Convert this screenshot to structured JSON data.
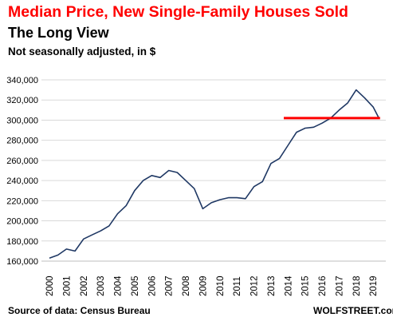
{
  "chart_data": {
    "type": "line",
    "title": "Median Price, New Single-Family Houses Sold",
    "subtitle": "The Long View",
    "note": "Not seasonally adjusted, in $",
    "source": "Source of data: Census Bureau",
    "credit": "WOLFSTREET.com",
    "ylim": [
      160000,
      340000
    ],
    "yticks": [
      "160,000",
      "180,000",
      "200,000",
      "220,000",
      "240,000",
      "260,000",
      "280,000",
      "300,000",
      "320,000",
      "340,000"
    ],
    "xticks": [
      "2000",
      "2001",
      "2002",
      "2003",
      "2004",
      "2005",
      "2006",
      "2007",
      "2008",
      "2009",
      "2010",
      "2011",
      "2012",
      "2013",
      "2014",
      "2015",
      "2016",
      "2017",
      "2018",
      "2019"
    ],
    "grid": "horizontal",
    "line_color": "#1f3864",
    "reference_line": {
      "y": 302000,
      "x_start": 2013.75,
      "x_end": 2019.4,
      "color": "#ff0000"
    },
    "x": [
      2000.0,
      2000.5,
      2001.0,
      2001.5,
      2002.0,
      2002.5,
      2003.0,
      2003.5,
      2004.0,
      2004.5,
      2005.0,
      2005.5,
      2006.0,
      2006.5,
      2007.0,
      2007.5,
      2008.0,
      2008.5,
      2009.0,
      2009.5,
      2010.0,
      2010.5,
      2011.0,
      2011.5,
      2012.0,
      2012.5,
      2013.0,
      2013.5,
      2014.0,
      2014.5,
      2015.0,
      2015.5,
      2016.0,
      2016.5,
      2017.0,
      2017.5,
      2018.0,
      2018.5,
      2019.0,
      2019.33
    ],
    "values": [
      163000,
      166000,
      172000,
      170000,
      182000,
      186000,
      190000,
      195000,
      207000,
      215000,
      230000,
      240000,
      245000,
      243000,
      250000,
      248000,
      240000,
      232000,
      212000,
      218000,
      221000,
      223000,
      223000,
      222000,
      234000,
      239000,
      257000,
      262000,
      275000,
      288000,
      292000,
      293000,
      297000,
      302000,
      310000,
      317000,
      330000,
      322000,
      313000,
      302000
    ]
  }
}
